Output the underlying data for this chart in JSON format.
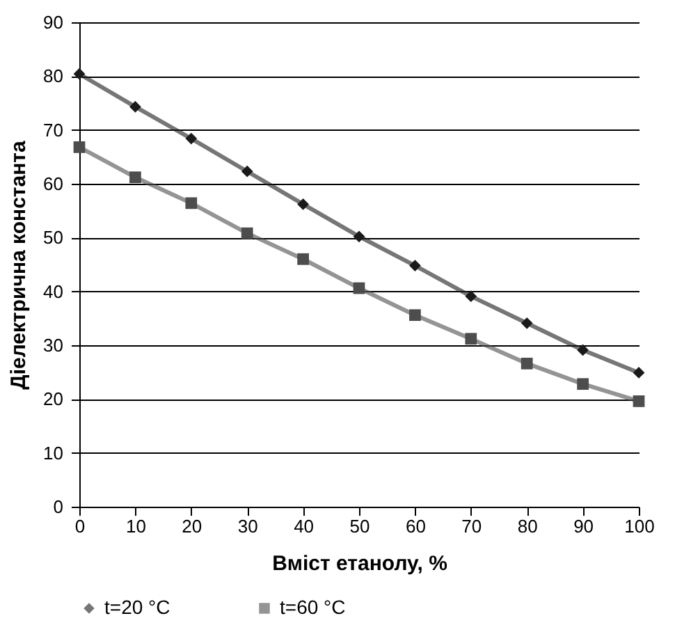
{
  "chart_data": {
    "type": "line",
    "xlabel": "Вміст етанолу, %",
    "ylabel": "Діелектрична константа",
    "x": [
      0,
      10,
      20,
      30,
      40,
      50,
      60,
      70,
      80,
      90,
      100
    ],
    "series": [
      {
        "name": "t=20 °C",
        "color": "#1a1a1a",
        "marker": "diamond",
        "values": [
          80.4,
          74.3,
          68.4,
          62.3,
          56.2,
          50.2,
          44.8,
          39.1,
          34.1,
          29.1,
          24.9
        ]
      },
      {
        "name": "t=60 °C",
        "color": "#4d4d4d",
        "marker": "square",
        "values": [
          66.8,
          61.2,
          56.4,
          50.8,
          46.0,
          40.6,
          35.6,
          31.2,
          26.6,
          22.8,
          19.6
        ]
      }
    ],
    "xlim": [
      0,
      100
    ],
    "xticks": [
      0,
      10,
      20,
      30,
      40,
      50,
      60,
      70,
      80,
      90,
      100
    ],
    "ylim": [
      0,
      90
    ],
    "yticks": [
      0,
      10,
      20,
      30,
      40,
      50,
      60,
      70,
      80,
      90
    ],
    "grid": "y",
    "legend": "bottom",
    "line_style": "solid"
  }
}
